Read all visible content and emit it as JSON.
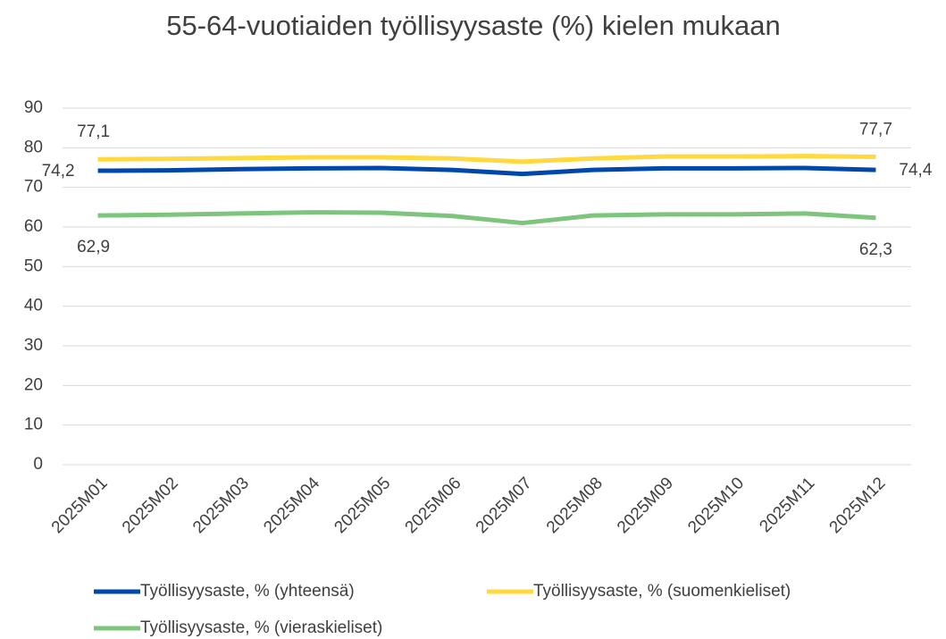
{
  "chart_data": {
    "type": "line",
    "title": "55-64-vuotiaiden työllisyysaste (%) kielen mukaan",
    "categories": [
      "2025M01",
      "2025M02",
      "2025M03",
      "2025M04",
      "2025M05",
      "2025M06",
      "2025M07",
      "2025M08",
      "2025M09",
      "2025M10",
      "2025M11",
      "2025M12"
    ],
    "series": [
      {
        "name": "Työllisyysaste, % (yhteensä)",
        "color": "#0047ab",
        "values": [
          74.2,
          74.3,
          74.6,
          74.8,
          74.9,
          74.4,
          73.4,
          74.4,
          74.8,
          74.8,
          74.9,
          74.4
        ],
        "value_labels": [
          "74,2",
          null,
          null,
          null,
          null,
          null,
          null,
          null,
          null,
          null,
          null,
          "74,4"
        ]
      },
      {
        "name": "Työllisyysaste, % (suomenkieliset)",
        "color": "#ffd93d",
        "values": [
          77.1,
          77.2,
          77.4,
          77.6,
          77.6,
          77.3,
          76.5,
          77.3,
          77.8,
          77.8,
          77.9,
          77.7
        ],
        "value_labels": [
          "77,1",
          null,
          null,
          null,
          null,
          null,
          null,
          null,
          null,
          null,
          null,
          "77,7"
        ]
      },
      {
        "name": "Työllisyysaste, % (vieraskieliset)",
        "color": "#7dc47d",
        "values": [
          62.9,
          63.1,
          63.4,
          63.7,
          63.6,
          62.8,
          61.0,
          62.9,
          63.2,
          63.2,
          63.4,
          62.3
        ],
        "value_labels": [
          "62,9",
          null,
          null,
          null,
          null,
          null,
          null,
          null,
          null,
          null,
          null,
          "62,3"
        ]
      }
    ],
    "ylim": [
      0,
      90
    ],
    "yticks": [
      0,
      10,
      20,
      30,
      40,
      50,
      60,
      70,
      80,
      90
    ],
    "grid": true
  }
}
